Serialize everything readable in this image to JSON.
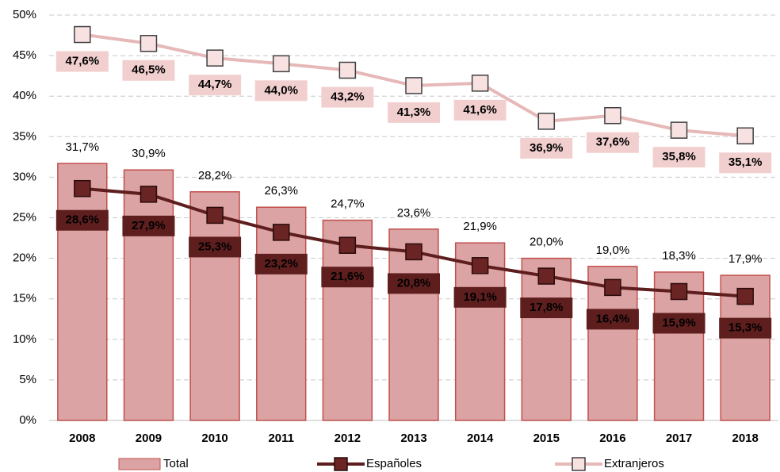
{
  "chart_data": {
    "type": "bar",
    "categories": [
      "2008",
      "2009",
      "2010",
      "2011",
      "2012",
      "2013",
      "2014",
      "2015",
      "2016",
      "2017",
      "2018"
    ],
    "series": [
      {
        "name": "Total",
        "type": "bar",
        "color": "#dba3a3",
        "values": [
          31.7,
          30.9,
          28.2,
          26.3,
          24.7,
          23.6,
          21.9,
          20.0,
          19.0,
          18.3,
          17.9
        ],
        "value_labels": [
          "31,7%",
          "30,9%",
          "28,2%",
          "26,3%",
          "24,7%",
          "23,6%",
          "21,9%",
          "20,0%",
          "19,0%",
          "18,3%",
          "17,9%"
        ]
      },
      {
        "name": "Españoles",
        "type": "line",
        "color": "#5e1e1e",
        "values": [
          28.6,
          27.9,
          25.3,
          23.2,
          21.6,
          20.8,
          19.1,
          17.8,
          16.4,
          15.9,
          15.3
        ],
        "value_labels": [
          "28,6%",
          "27,9%",
          "25,3%",
          "23,2%",
          "21,6%",
          "20,8%",
          "19,1%",
          "17,8%",
          "16,4%",
          "15,9%",
          "15,3%"
        ]
      },
      {
        "name": "Extranjeros",
        "type": "line",
        "color": "#e6b8b8",
        "values": [
          47.6,
          46.5,
          44.7,
          44.0,
          43.2,
          41.3,
          41.6,
          36.9,
          37.6,
          35.8,
          35.1
        ],
        "value_labels": [
          "47,6%",
          "46,5%",
          "44,7%",
          "44,0%",
          "43,2%",
          "41,3%",
          "41,6%",
          "36,9%",
          "37,6%",
          "35,8%",
          "35,1%"
        ]
      }
    ],
    "ylim": [
      0,
      50
    ],
    "yticks": [
      {
        "value": 0,
        "label": "0%"
      },
      {
        "value": 5,
        "label": "5%"
      },
      {
        "value": 10,
        "label": "10%"
      },
      {
        "value": 15,
        "label": "15%"
      },
      {
        "value": 20,
        "label": "20%"
      },
      {
        "value": 25,
        "label": "25%"
      },
      {
        "value": 30,
        "label": "30%"
      },
      {
        "value": 35,
        "label": "35%"
      },
      {
        "value": 40,
        "label": "40%"
      },
      {
        "value": 45,
        "label": "45%"
      },
      {
        "value": 50,
        "label": "50%"
      }
    ],
    "grid": true,
    "legend": "bottom"
  }
}
